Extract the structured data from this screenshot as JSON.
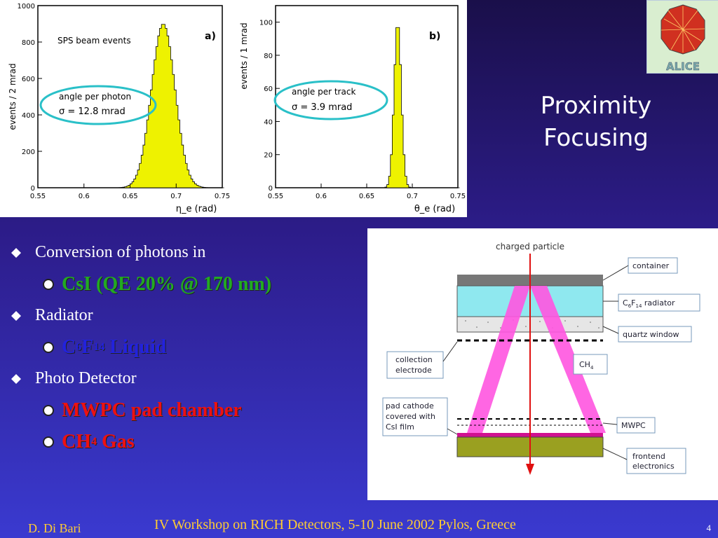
{
  "slide": {
    "title_line1": "Proximity",
    "title_line2": "Focusing",
    "page_number": "4",
    "footer_author": "D. Di Bari",
    "footer_event": "IV Workshop on RICH Detectors, 5-10 June 2002 Pylos, Greece"
  },
  "logo": {
    "text": "ALICE"
  },
  "bullets": [
    {
      "level": 1,
      "text": "Conversion of photons in",
      "color": "#ffffff"
    },
    {
      "level": 2,
      "text": "CsI (QE  20% @ 170 nm)",
      "color": "#22aa22"
    },
    {
      "level": 1,
      "text": "Radiator",
      "color": "#ffffff"
    },
    {
      "level": 2,
      "base1": "C",
      "sub1": "6",
      "base2": "F",
      "sub2": "14",
      "tail": " Liquid",
      "color": "#2222dd"
    },
    {
      "level": 1,
      "text": "Photo Detector",
      "color": "#ffffff"
    },
    {
      "level": 2,
      "text": "MWPC pad chamber",
      "color": "#ee1111"
    },
    {
      "level": 2,
      "base1": "CH",
      "sub1": "4",
      "tail": " Gas",
      "color": "#ee1111"
    }
  ],
  "chart_data": [
    {
      "type": "histogram",
      "panel_label": "a)",
      "xlabel": "η_e   (rad)",
      "ylabel": "events / 2 mrad",
      "annotation_top": "SPS beam events",
      "annotation_box": [
        "angle per photon",
        "σ = 12.8 mrad"
      ],
      "xlim": [
        0.55,
        0.75
      ],
      "ylim": [
        0,
        1000
      ],
      "x_ticks": [
        "0.55",
        "0.6",
        "0.65",
        "0.7",
        "0.75"
      ],
      "y_ticks": [
        "0",
        "200",
        "400",
        "600",
        "800",
        "1000"
      ],
      "mean": 0.685,
      "sigma": 0.0128,
      "peak": 900,
      "fill": "#eef200"
    },
    {
      "type": "histogram",
      "panel_label": "b)",
      "xlabel": "θ_e   (rad)",
      "ylabel": "events / 1 mrad",
      "annotation_box": [
        "angle per track",
        "σ = 3.9 mrad"
      ],
      "xlim": [
        0.55,
        0.75
      ],
      "ylim": [
        0,
        110
      ],
      "x_ticks": [
        "0.55",
        "0.6",
        "0.65",
        "0.7",
        "0.75"
      ],
      "y_ticks": [
        "0",
        "20",
        "40",
        "60",
        "80",
        "100"
      ],
      "mean": 0.683,
      "sigma": 0.0039,
      "peak": 100,
      "fill": "#eef200"
    }
  ],
  "diagram": {
    "top_label": "charged particle",
    "labels": {
      "container": "container",
      "radiator_base": "C",
      "radiator_sub1": "6",
      "radiator_mid": "F",
      "radiator_sub2": "14",
      "radiator_tail": " radiator",
      "quartz": "quartz window",
      "collection1": "collection",
      "collection2": "electrode",
      "ch4": "CH",
      "ch4_sub": "4",
      "pad1": "pad cathode",
      "pad2": "covered with",
      "pad3": "CsI film",
      "mwpc": "MWPC",
      "frontend1": "frontend",
      "frontend2": "electronics"
    },
    "colors": {
      "container": "#777777",
      "radiator": "#8fe8ef",
      "cone": "#ff55e0",
      "beam": "#e01010",
      "pad": "#d01090",
      "pcb": "#9aa020",
      "label_border": "#7799bb"
    }
  }
}
